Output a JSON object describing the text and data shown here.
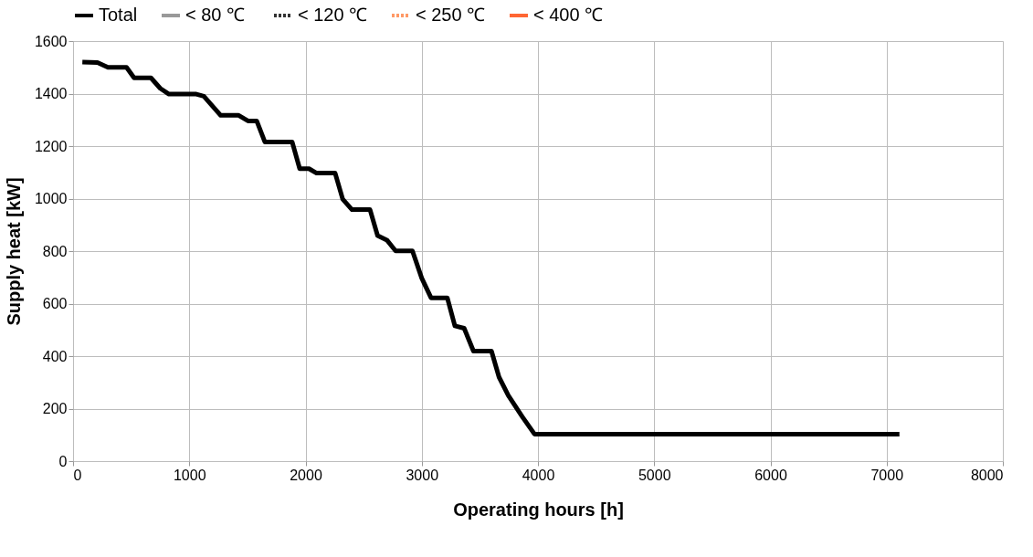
{
  "chart_data": {
    "type": "line",
    "xlabel": "Operating hours [h]",
    "ylabel": "Supply heat [kW]",
    "xlim": [
      0,
      8000
    ],
    "xticks": [
      0,
      1000,
      2000,
      3000,
      4000,
      5000,
      6000,
      7000,
      8000
    ],
    "ylim": [
      0,
      1600
    ],
    "yticks": [
      0,
      200,
      400,
      600,
      800,
      1000,
      1200,
      1400,
      1600
    ],
    "grid": true,
    "legend": "top",
    "marker": "none",
    "x": [
      80,
      210,
      300,
      460,
      525,
      670,
      750,
      825,
      1060,
      1125,
      1270,
      1425,
      1505,
      1580,
      1650,
      1885,
      1950,
      2030,
      2095,
      2255,
      2320,
      2400,
      2555,
      2620,
      2700,
      2775,
      2920,
      3000,
      3080,
      3220,
      3285,
      3365,
      3445,
      3600,
      3665,
      3745,
      3865,
      3970,
      7110
    ],
    "series": [
      {
        "name": "Total",
        "color": "#000000",
        "line_style": "solid",
        "values": [
          1520,
          1518,
          1500,
          1500,
          1460,
          1460,
          1420,
          1398,
          1398,
          1390,
          1317,
          1317,
          1296,
          1296,
          1216,
          1216,
          1114,
          1114,
          1097,
          1097,
          998,
          958,
          958,
          859,
          842,
          801,
          801,
          697,
          622,
          622,
          515,
          506,
          419,
          419,
          320,
          250,
          169,
          103,
          103
        ]
      },
      {
        "name": "<  80 ℃",
        "color": "#999999",
        "line_style": "solid",
        "values": [
          null,
          null,
          null,
          null,
          null,
          null,
          null,
          null,
          null,
          null,
          null,
          null,
          null,
          null,
          null,
          null,
          null,
          null,
          null,
          null,
          null,
          null,
          null,
          null,
          null,
          null,
          null,
          null,
          null,
          null,
          null,
          null,
          null,
          null,
          null,
          null,
          null,
          null,
          null
        ]
      },
      {
        "name": "< 120 ℃",
        "color": "#333333",
        "line_style": "dotted",
        "values": [
          null,
          null,
          null,
          null,
          null,
          null,
          null,
          null,
          null,
          null,
          null,
          null,
          null,
          null,
          null,
          null,
          null,
          null,
          null,
          null,
          null,
          null,
          null,
          null,
          null,
          null,
          null,
          null,
          null,
          null,
          null,
          null,
          null,
          null,
          null,
          null,
          null,
          null,
          null
        ]
      },
      {
        "name": "< 250 ℃",
        "color": "#ff9966",
        "line_style": "dotted",
        "values": [
          null,
          null,
          null,
          null,
          null,
          null,
          null,
          null,
          null,
          null,
          null,
          null,
          null,
          null,
          null,
          null,
          null,
          null,
          null,
          null,
          null,
          null,
          null,
          null,
          null,
          null,
          null,
          null,
          null,
          null,
          null,
          null,
          null,
          null,
          null,
          null,
          null,
          null,
          null
        ]
      },
      {
        "name": "< 400 ℃",
        "color": "#ff6633",
        "line_style": "solid",
        "values": [
          null,
          null,
          null,
          null,
          null,
          null,
          null,
          null,
          null,
          null,
          null,
          null,
          null,
          null,
          null,
          null,
          null,
          null,
          null,
          null,
          null,
          null,
          null,
          null,
          null,
          null,
          null,
          null,
          null,
          null,
          null,
          null,
          null,
          null,
          null,
          null,
          null,
          null,
          null
        ]
      }
    ]
  }
}
